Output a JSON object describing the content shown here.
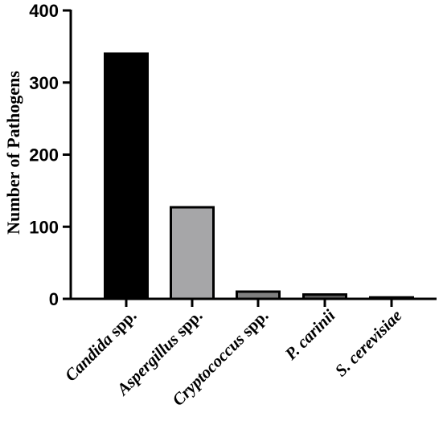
{
  "chart_data": {
    "type": "bar",
    "title": "",
    "xlabel": "",
    "ylabel": "Number of Pathogens",
    "ylim": [
      0,
      400
    ],
    "yticks": [
      0,
      100,
      200,
      300,
      400
    ],
    "grid": false,
    "categories": [
      {
        "italic": "Candida",
        "suffix": " spp."
      },
      {
        "italic": "Aspergillus",
        "suffix": " spp."
      },
      {
        "italic": "Cryptococcus",
        "suffix": " spp."
      },
      {
        "italic": "P. carinii",
        "suffix": ""
      },
      {
        "italic": "S. cerevisiae",
        "suffix": ""
      }
    ],
    "values": [
      340,
      127,
      10,
      6,
      2
    ],
    "bar_colors": [
      "#000000",
      "#a6a6a8",
      "#7f7f7f",
      "#5f5f5f",
      "#5f5f5f"
    ],
    "bar_edge_color": "#000000"
  }
}
